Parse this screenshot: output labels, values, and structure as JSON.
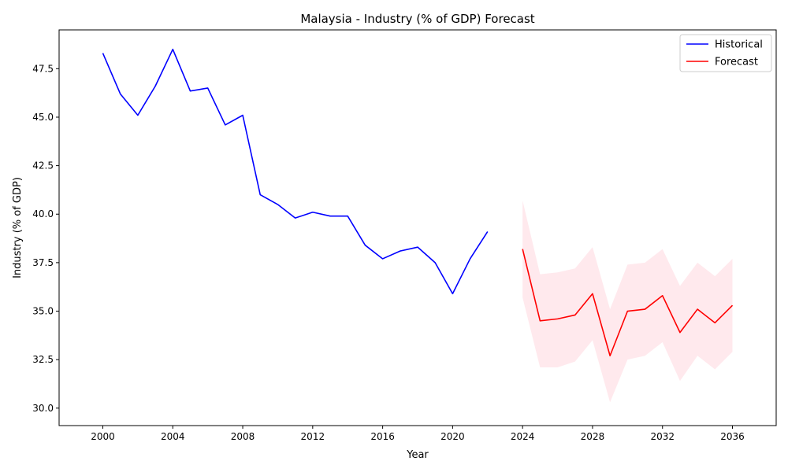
{
  "chart_data": {
    "type": "line",
    "title": "Malaysia - Industry (% of GDP) Forecast",
    "xlabel": "Year",
    "ylabel": "Industry (% of GDP)",
    "xlim": [
      1997.5,
      2038.5
    ],
    "ylim": [
      29.1,
      49.5
    ],
    "x_ticks": [
      2000,
      2004,
      2008,
      2012,
      2016,
      2020,
      2024,
      2028,
      2032,
      2036
    ],
    "y_ticks": [
      30.0,
      32.5,
      35.0,
      37.5,
      40.0,
      42.5,
      45.0,
      47.5
    ],
    "grid": false,
    "legend_position": "top-right",
    "series": [
      {
        "name": "Historical",
        "color": "#0000ff",
        "x": [
          2000,
          2001,
          2002,
          2003,
          2004,
          2005,
          2006,
          2007,
          2008,
          2009,
          2010,
          2011,
          2012,
          2013,
          2014,
          2015,
          2016,
          2017,
          2018,
          2019,
          2020,
          2021,
          2022
        ],
        "y": [
          48.3,
          46.2,
          45.1,
          46.6,
          48.5,
          46.35,
          46.5,
          44.6,
          45.1,
          41.0,
          40.5,
          39.8,
          40.1,
          39.9,
          39.9,
          38.4,
          37.7,
          38.1,
          38.3,
          37.5,
          35.9,
          37.7,
          39.1
        ]
      },
      {
        "name": "Forecast",
        "color": "#ff0000",
        "x": [
          2024,
          2025,
          2026,
          2027,
          2028,
          2029,
          2030,
          2031,
          2032,
          2033,
          2034,
          2035,
          2036
        ],
        "y": [
          38.2,
          34.5,
          34.6,
          34.8,
          35.9,
          32.7,
          35.0,
          35.1,
          35.8,
          33.9,
          35.1,
          34.4,
          35.3
        ]
      }
    ],
    "confidence_band": {
      "color": "#ffc0cb",
      "opacity": 0.35,
      "x": [
        2024,
        2025,
        2026,
        2027,
        2028,
        2029,
        2030,
        2031,
        2032,
        2033,
        2034,
        2035,
        2036
      ],
      "lower": [
        35.7,
        32.1,
        32.1,
        32.4,
        33.5,
        30.3,
        32.5,
        32.7,
        33.4,
        31.4,
        32.7,
        32.0,
        32.9
      ],
      "upper": [
        40.7,
        36.9,
        37.0,
        37.2,
        38.3,
        35.1,
        37.4,
        37.5,
        38.2,
        36.3,
        37.5,
        36.8,
        37.7
      ]
    }
  }
}
